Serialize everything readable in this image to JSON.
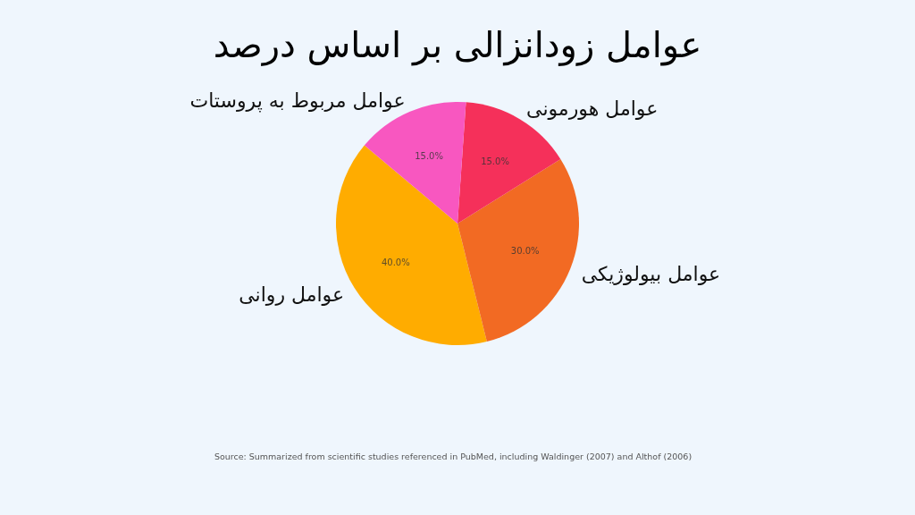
{
  "chart_data": {
    "type": "pie",
    "title": "عوامل زودانزالی بر اساس درصد",
    "categories": [
      "عوامل روانی",
      "عوامل بیولوژیکی",
      "عوامل هورمونی",
      "عوامل مربوط به پروستات"
    ],
    "values": [
      40,
      30,
      15,
      15
    ],
    "colors": [
      "#ffac00",
      "#f26a23",
      "#f5305a",
      "#f857c0"
    ],
    "value_labels": [
      "40.0%",
      "30.0%",
      "15.0%",
      "15.0%"
    ],
    "annotations": [
      "Source: Summarized from scientific studies referenced in PubMed, including Waldinger (2007) and Althof (2006)"
    ]
  }
}
